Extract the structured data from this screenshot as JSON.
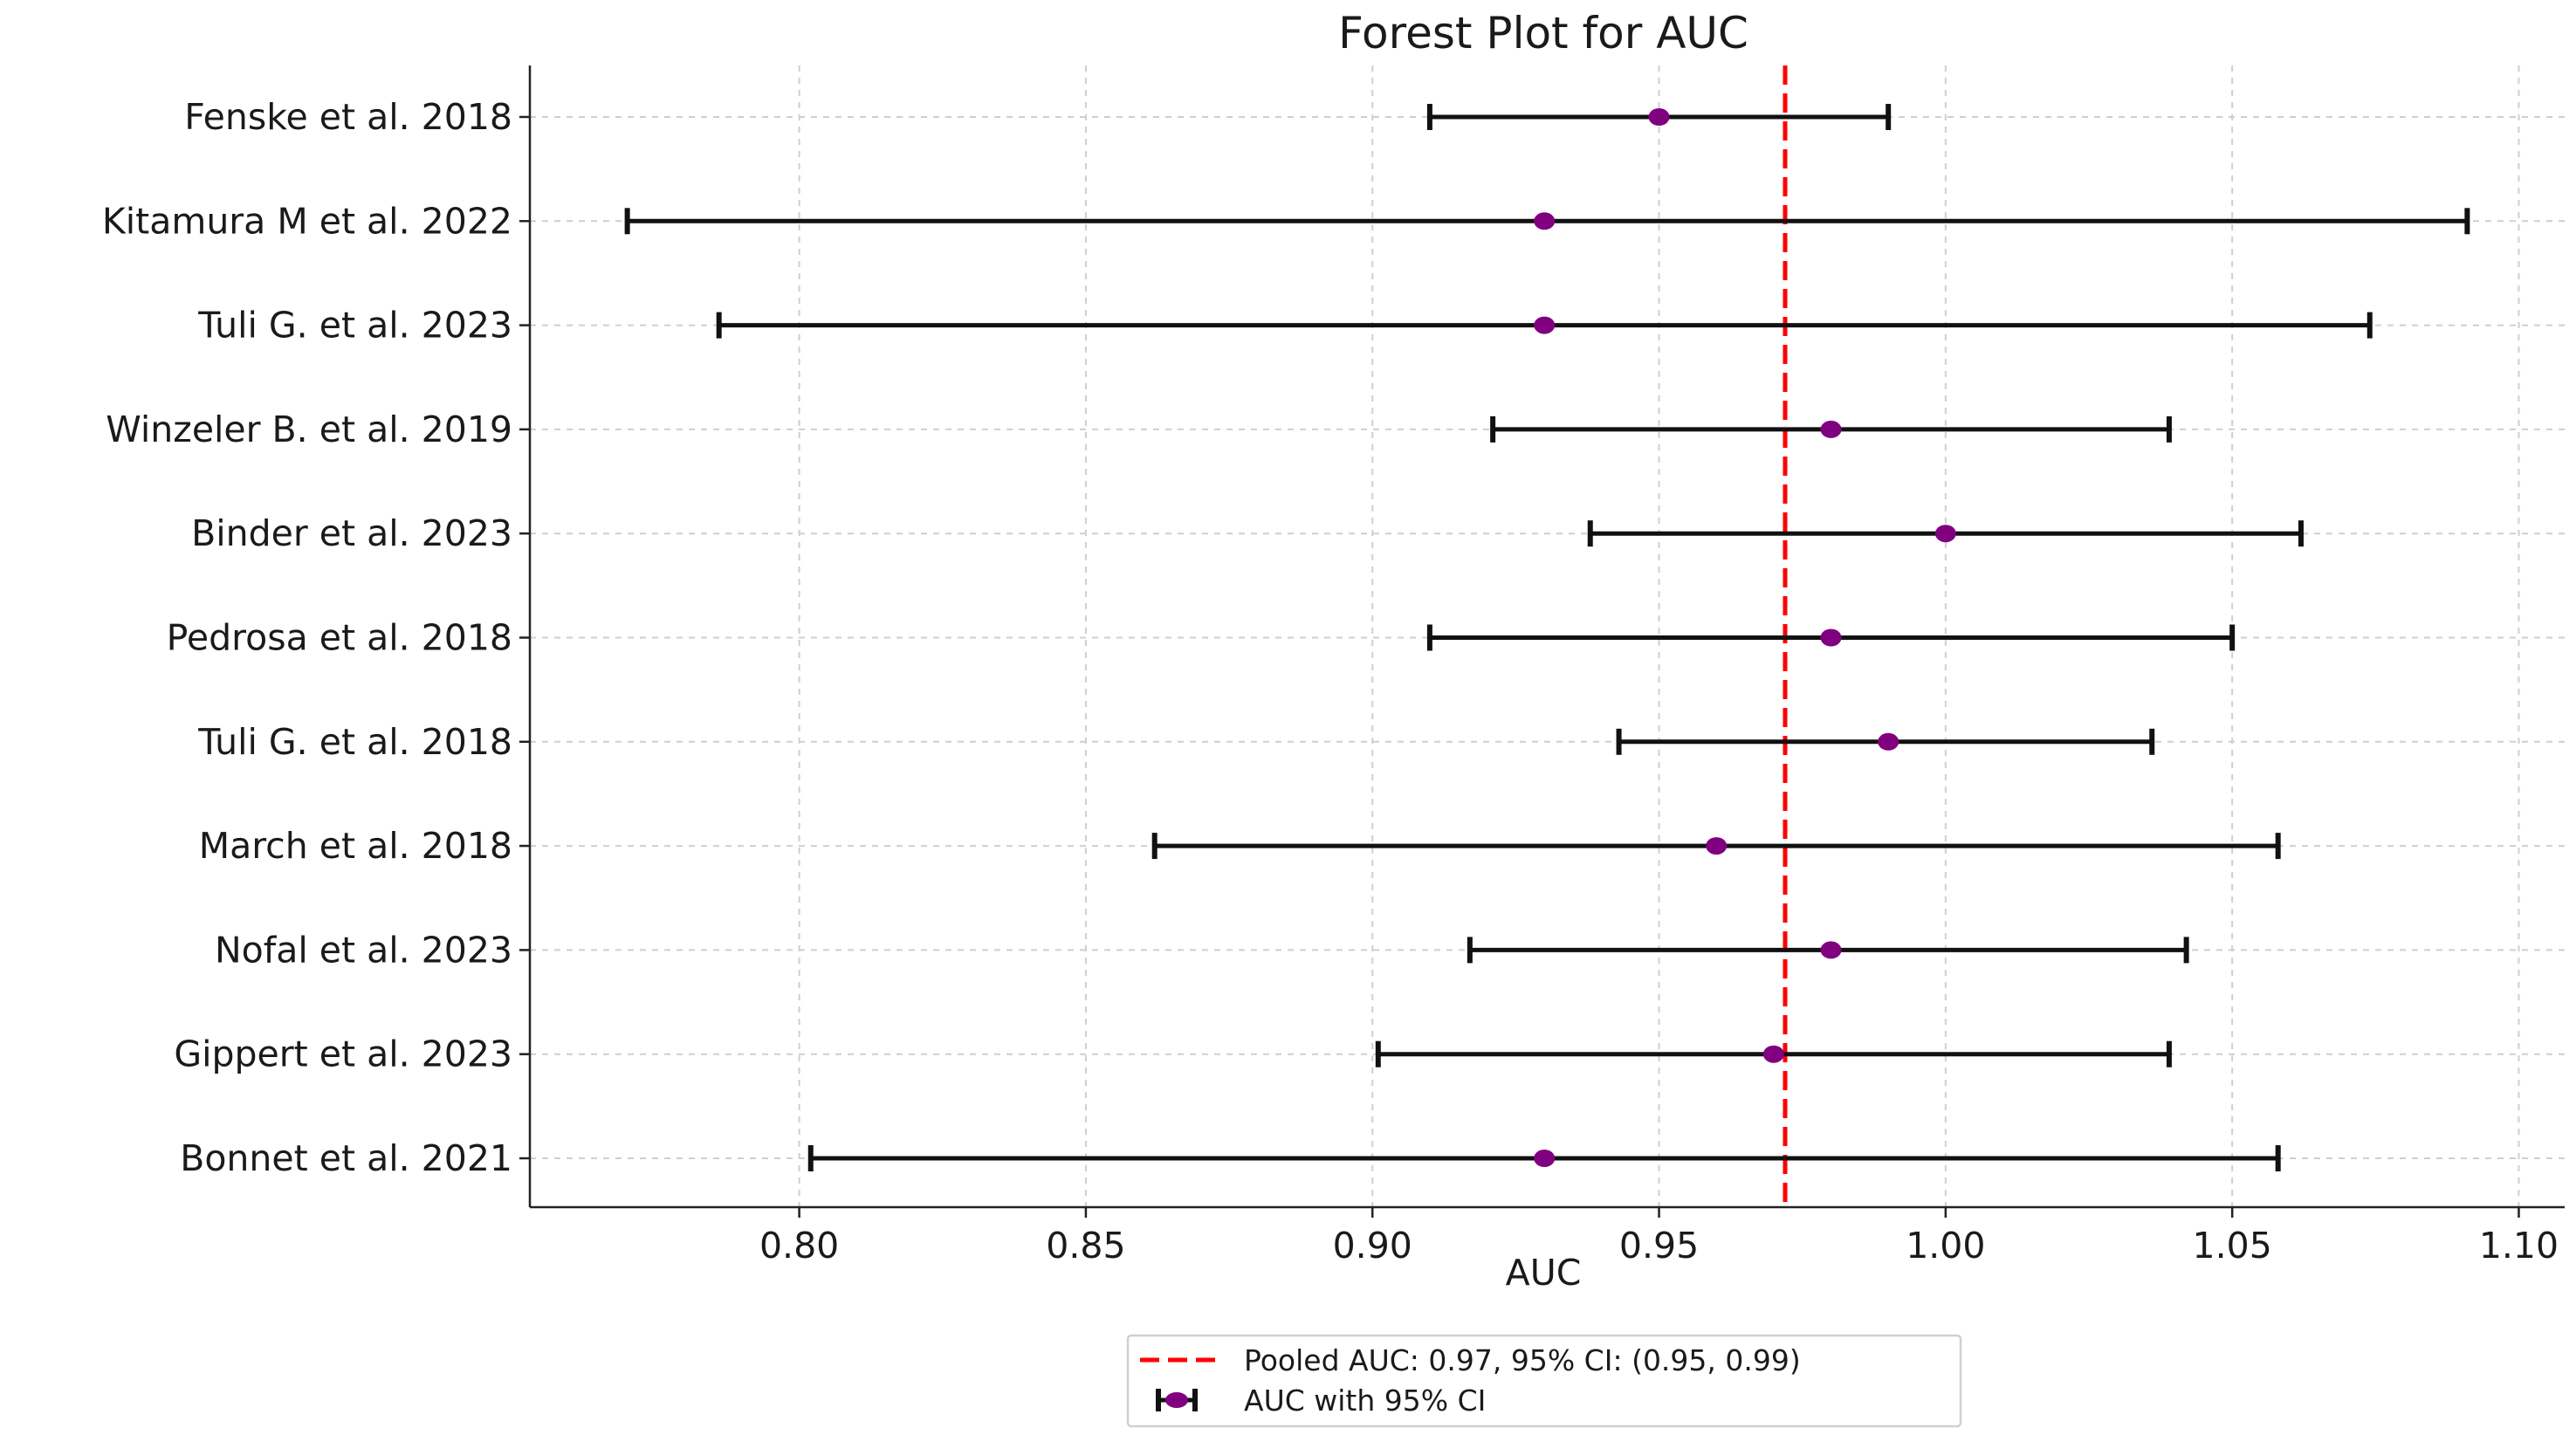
{
  "chart_data": {
    "type": "forest",
    "title": "Forest Plot for AUC",
    "xlabel": "AUC",
    "ylabel": "",
    "xlim": [
      0.753,
      1.108
    ],
    "xticks": [
      0.8,
      0.85,
      0.9,
      0.95,
      1.0,
      1.05,
      1.1
    ],
    "xtick_labels": [
      "0.80",
      "0.85",
      "0.90",
      "0.95",
      "1.00",
      "1.05",
      "1.10"
    ],
    "grid": true,
    "studies": [
      {
        "name": "Fenske et al. 2018",
        "auc": 0.95,
        "ci_low": 0.91,
        "ci_high": 0.99
      },
      {
        "name": "Kitamura M et al. 2022",
        "auc": 0.93,
        "ci_low": 0.77,
        "ci_high": 1.091
      },
      {
        "name": "Tuli G. et al. 2023",
        "auc": 0.93,
        "ci_low": 0.786,
        "ci_high": 1.074
      },
      {
        "name": "Winzeler B. et al. 2019",
        "auc": 0.98,
        "ci_low": 0.921,
        "ci_high": 1.039
      },
      {
        "name": "Binder et al. 2023",
        "auc": 1.0,
        "ci_low": 0.938,
        "ci_high": 1.062
      },
      {
        "name": "Pedrosa et al. 2018",
        "auc": 0.98,
        "ci_low": 0.91,
        "ci_high": 1.05
      },
      {
        "name": "Tuli G. et al. 2018",
        "auc": 0.99,
        "ci_low": 0.943,
        "ci_high": 1.036
      },
      {
        "name": "March et al. 2018",
        "auc": 0.96,
        "ci_low": 0.862,
        "ci_high": 1.058
      },
      {
        "name": "Nofal et al. 2023",
        "auc": 0.98,
        "ci_low": 0.917,
        "ci_high": 1.042
      },
      {
        "name": "Gippert et al. 2023",
        "auc": 0.97,
        "ci_low": 0.901,
        "ci_high": 1.039
      },
      {
        "name": "Bonnet et al. 2021",
        "auc": 0.93,
        "ci_low": 0.802,
        "ci_high": 1.058
      }
    ],
    "pooled": {
      "auc": 0.972
    },
    "legend": {
      "position": "bottom-center",
      "entries": [
        "Pooled AUC: 0.97, 95% CI: (0.95, 0.99)",
        "AUC with 95% CI"
      ]
    },
    "colors": {
      "point": "#800080",
      "ci": "#111111",
      "pooled": "#ff0000",
      "grid": "#cfcfcf"
    }
  }
}
